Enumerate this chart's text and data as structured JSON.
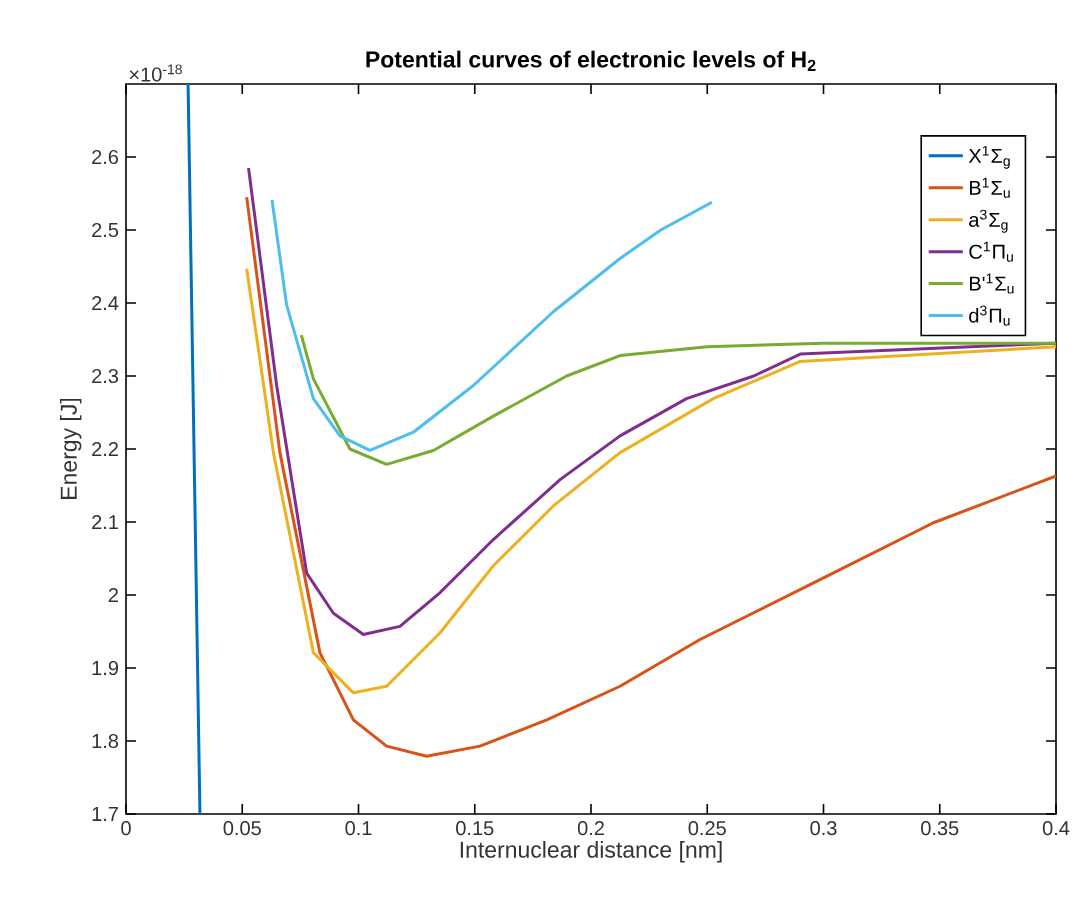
{
  "chart_data": {
    "type": "line",
    "title": "**Potential curves of electronic levels of H$_{2}$**",
    "xlabel": "Internuclear distance [nm]",
    "ylabel": "Energy [J]",
    "annotations": [
      "×10$^{-18}$"
    ],
    "xlim": [
      0,
      0.4
    ],
    "ylim": [
      1.7,
      2.7
    ],
    "xticks": [
      0,
      0.05,
      0.1,
      0.15,
      0.2,
      0.25,
      0.3,
      0.35,
      0.4
    ],
    "yticks": [
      1.7,
      1.8,
      1.9,
      2,
      2.1,
      2.2,
      2.3,
      2.4,
      2.5,
      2.6
    ],
    "legend": "top right",
    "grid": false,
    "marker": "none",
    "line_style": "solid",
    "series": [
      {
        "name": "X$^{1}$Σ$_{g}$",
        "color": "#0072bd",
        "x": [
          0.0267,
          0.0318
        ],
        "values": [
          2.7,
          1.7
        ]
      },
      {
        "name": "B$^{1}$Σ$_{u}$",
        "color": "#d95319",
        "x": [
          0.0519,
          0.0662,
          0.0834,
          0.0978,
          0.1121,
          0.1293,
          0.1523,
          0.181,
          0.2125,
          0.2469,
          0.2985,
          0.3473,
          0.4
        ],
        "values": [
          2.545,
          2.195,
          1.921,
          1.829,
          1.793,
          1.779,
          1.793,
          1.829,
          1.875,
          1.939,
          2.021,
          2.099,
          2.163
        ]
      },
      {
        "name": "a$^{3}$Σ$_{g}$",
        "color": "#edb120",
        "x": [
          0.0519,
          0.0634,
          0.0806,
          0.0978,
          0.1121,
          0.135,
          0.158,
          0.1838,
          0.2125,
          0.2526,
          0.29,
          0.4
        ],
        "values": [
          2.447,
          2.195,
          1.921,
          1.866,
          1.875,
          1.948,
          2.04,
          2.122,
          2.195,
          2.269,
          2.32,
          2.34
        ]
      },
      {
        "name": "C$^{1}$Π$_{u}$",
        "color": "#7e2f8e",
        "x": [
          0.0527,
          0.0648,
          0.0777,
          0.0892,
          0.1021,
          0.1178,
          0.135,
          0.158,
          0.1867,
          0.2125,
          0.2411,
          0.27,
          0.29,
          0.4
        ],
        "values": [
          2.585,
          2.287,
          2.03,
          1.975,
          1.946,
          1.957,
          2.003,
          2.076,
          2.158,
          2.218,
          2.269,
          2.3,
          2.33,
          2.345
        ]
      },
      {
        "name": "B'$^{1}$Σ$_{u}$",
        "color": "#77ac30",
        "x": [
          0.0754,
          0.0806,
          0.0963,
          0.1121,
          0.1322,
          0.158,
          0.1895,
          0.2125,
          0.25,
          0.3,
          0.4
        ],
        "values": [
          2.356,
          2.296,
          2.2,
          2.179,
          2.198,
          2.245,
          2.3,
          2.328,
          2.34,
          2.345,
          2.345
        ]
      },
      {
        "name": "d$^{3}$Π$_{u}$",
        "color": "#4dbeee",
        "x": [
          0.0628,
          0.0691,
          0.0806,
          0.092,
          0.1049,
          0.1236,
          0.1494,
          0.1838,
          0.2125,
          0.23,
          0.252
        ],
        "values": [
          2.541,
          2.397,
          2.269,
          2.218,
          2.198,
          2.223,
          2.287,
          2.388,
          2.461,
          2.5,
          2.538
        ]
      }
    ]
  }
}
